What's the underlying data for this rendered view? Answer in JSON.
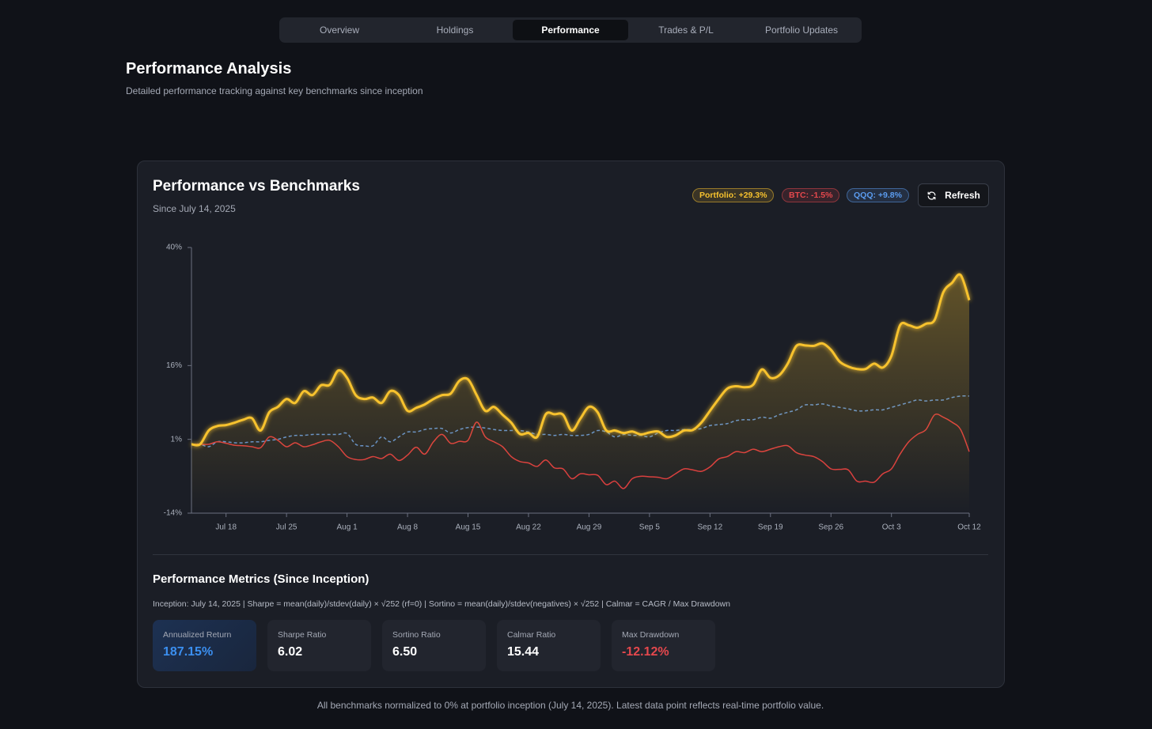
{
  "nav": {
    "tabs": [
      "Overview",
      "Holdings",
      "Performance",
      "Trades & P/L",
      "Portfolio Updates"
    ],
    "active": 2
  },
  "header": {
    "title": "Performance Analysis",
    "subtitle": "Detailed performance tracking against key benchmarks since inception"
  },
  "chart_card": {
    "title": "Performance vs Benchmarks",
    "subtitle": "Since July 14, 2025",
    "badges": [
      "Portfolio: +29.3%",
      "BTC: -1.5%",
      "QQQ: +9.8%"
    ],
    "refresh_button": "Refresh"
  },
  "chart_data": {
    "type": "line",
    "x": [
      "2025-07-14",
      "2025-07-15",
      "2025-07-16",
      "2025-07-17",
      "2025-07-18",
      "2025-07-19",
      "2025-07-20",
      "2025-07-21",
      "2025-07-22",
      "2025-07-23",
      "2025-07-24",
      "2025-07-25",
      "2025-07-26",
      "2025-07-27",
      "2025-07-28",
      "2025-07-29",
      "2025-07-30",
      "2025-07-31",
      "2025-08-01",
      "2025-08-02",
      "2025-08-03",
      "2025-08-04",
      "2025-08-05",
      "2025-08-06",
      "2025-08-07",
      "2025-08-08",
      "2025-08-09",
      "2025-08-10",
      "2025-08-11",
      "2025-08-12",
      "2025-08-13",
      "2025-08-14",
      "2025-08-15",
      "2025-08-16",
      "2025-08-17",
      "2025-08-18",
      "2025-08-19",
      "2025-08-20",
      "2025-08-21",
      "2025-08-22",
      "2025-08-23",
      "2025-08-24",
      "2025-08-25",
      "2025-08-26",
      "2025-08-27",
      "2025-08-28",
      "2025-08-29",
      "2025-08-30",
      "2025-08-31",
      "2025-09-01",
      "2025-09-02",
      "2025-09-03",
      "2025-09-04",
      "2025-09-05",
      "2025-09-06",
      "2025-09-07",
      "2025-09-08",
      "2025-09-09",
      "2025-09-10",
      "2025-09-11",
      "2025-09-12",
      "2025-09-13",
      "2025-09-14",
      "2025-09-15",
      "2025-09-16",
      "2025-09-17",
      "2025-09-18",
      "2025-09-19",
      "2025-09-20",
      "2025-09-21",
      "2025-09-22",
      "2025-09-23",
      "2025-09-24",
      "2025-09-25",
      "2025-09-26",
      "2025-09-27",
      "2025-09-28",
      "2025-09-29",
      "2025-09-30",
      "2025-10-01",
      "2025-10-02",
      "2025-10-03",
      "2025-10-04",
      "2025-10-05",
      "2025-10-06",
      "2025-10-07",
      "2025-10-08",
      "2025-10-09",
      "2025-10-10",
      "2025-10-11",
      "2025-10-12"
    ],
    "series": [
      {
        "color": "#f7c22e",
        "dashed": false,
        "area": true,
        "values": [
          0,
          0,
          2.8,
          3.7,
          3.9,
          4.4,
          5,
          5.3,
          2.8,
          6.5,
          7.6,
          9.2,
          8.4,
          10.8,
          10,
          12,
          12.1,
          15,
          13.5,
          10,
          9.2,
          9.5,
          8.4,
          10.8,
          10,
          6.8,
          7.4,
          8.1,
          9.2,
          10,
          10.3,
          12.9,
          13.2,
          10,
          6.8,
          7.6,
          6,
          4.4,
          2.1,
          2.3,
          1.5,
          6.1,
          6.1,
          6,
          2.8,
          5.2,
          7.6,
          6.5,
          2.8,
          2.8,
          2.3,
          2.6,
          2,
          2.4,
          2.6,
          1.5,
          1.8,
          2.8,
          2.9,
          4.4,
          6.8,
          9.2,
          11.3,
          11.8,
          11.6,
          12.1,
          15.2,
          13.5,
          14,
          16.4,
          20,
          20.1,
          20,
          20.5,
          19.2,
          16.8,
          15.8,
          15.3,
          15.3,
          16.4,
          15.6,
          18,
          24.2,
          24.2,
          23.7,
          24.5,
          25.3,
          30.9,
          32.8,
          34.4,
          29.3
        ]
      },
      {
        "color": "#d9393f",
        "dashed": false,
        "area": false,
        "values": [
          0,
          0,
          0,
          0.5,
          0.2,
          -0.2,
          -0.3,
          -0.5,
          -0.7,
          1.5,
          0.8,
          -0.5,
          0.3,
          -0.5,
          -0.1,
          0.5,
          0.8,
          -0.5,
          -2.5,
          -3.1,
          -3.1,
          -2.5,
          -2.9,
          -2,
          -3.3,
          -2.2,
          -0.6,
          -2,
          0.5,
          2,
          0.2,
          0.6,
          0.8,
          4.5,
          1.5,
          0.5,
          -0.5,
          -2.5,
          -3.5,
          -3.8,
          -4.5,
          -3.2,
          -4.8,
          -5,
          -7,
          -6,
          -6.2,
          -6.3,
          -8.2,
          -7.5,
          -9,
          -7,
          -6.5,
          -6.6,
          -6.7,
          -7,
          -6,
          -5,
          -5.2,
          -5.5,
          -4.6,
          -3,
          -2.5,
          -1.5,
          -1.7,
          -1,
          -1.5,
          -1,
          -0.5,
          -0.3,
          -1.7,
          -2.2,
          -2.5,
          -3.5,
          -5,
          -5.1,
          -5.2,
          -7.5,
          -7.5,
          -7.7,
          -6,
          -5,
          -2,
          0.5,
          2,
          3,
          6,
          5.5,
          4.5,
          3,
          -1.5
        ]
      },
      {
        "color": "#5b8fd6",
        "dashed": true,
        "area": false,
        "values": [
          0,
          0,
          -0.5,
          0.5,
          0.5,
          0.3,
          0.3,
          0.5,
          0.5,
          0.8,
          1,
          1.5,
          1.8,
          1.8,
          2,
          2,
          2,
          2,
          2.2,
          0,
          -0.3,
          -0.3,
          1.5,
          0.5,
          1.5,
          2.5,
          2.5,
          3,
          3.2,
          3.2,
          2.3,
          3,
          3.4,
          3.5,
          3.3,
          3,
          2.8,
          2.8,
          2.8,
          2.5,
          2,
          2,
          1.8,
          2,
          1.8,
          1.8,
          2,
          2.8,
          2.5,
          1.5,
          2,
          1.8,
          1.8,
          1.5,
          2.3,
          2.8,
          2.8,
          3,
          3,
          3.2,
          3.8,
          4,
          4.2,
          4.8,
          5,
          5,
          5.5,
          5.3,
          6,
          6.5,
          7,
          8,
          8,
          8.2,
          7.8,
          7.5,
          7.2,
          6.8,
          6.8,
          7,
          7,
          7.5,
          8,
          8.5,
          9,
          8.8,
          9,
          9,
          9.5,
          9.8,
          9.8
        ]
      }
    ],
    "xlim": [
      "2025-07-14",
      "2025-10-12"
    ],
    "xticks": [
      {
        "value": "2025-07-18",
        "label": "Jul 18"
      },
      {
        "value": "2025-07-25",
        "label": "Jul 25"
      },
      {
        "value": "2025-08-01",
        "label": "Aug 1"
      },
      {
        "value": "2025-08-08",
        "label": "Aug 8"
      },
      {
        "value": "2025-08-15",
        "label": "Aug 15"
      },
      {
        "value": "2025-08-22",
        "label": "Aug 22"
      },
      {
        "value": "2025-08-29",
        "label": "Aug 29"
      },
      {
        "value": "2025-09-05",
        "label": "Sep 5"
      },
      {
        "value": "2025-09-12",
        "label": "Sep 12"
      },
      {
        "value": "2025-09-19",
        "label": "Sep 19"
      },
      {
        "value": "2025-09-26",
        "label": "Sep 26"
      },
      {
        "value": "2025-10-03",
        "label": "Oct 3"
      },
      {
        "value": "2025-10-12",
        "label": "Oct 12"
      }
    ],
    "ylim": [
      -14,
      40
    ],
    "yticks": [
      {
        "value": -14,
        "label": "-14%"
      },
      {
        "value": 1,
        "label": "1%"
      },
      {
        "value": 16,
        "label": "16%"
      },
      {
        "value": 40,
        "label": "40%"
      }
    ],
    "grid": false
  },
  "metrics": {
    "title": "Performance Metrics (Since Inception)",
    "formula": "Inception: July 14, 2025 | Sharpe = mean(daily)/stdev(daily) × √252 (rf=0) | Sortino = mean(daily)/stdev(negatives) × √252 | Calmar = CAGR / Max Drawdown",
    "items": [
      {
        "label": "Annualized Return",
        "value": "187.15%",
        "tone": "highlight"
      },
      {
        "label": "Sharpe Ratio",
        "value": "6.02",
        "tone": "plain"
      },
      {
        "label": "Sortino Ratio",
        "value": "6.50",
        "tone": "plain"
      },
      {
        "label": "Calmar Ratio",
        "value": "15.44",
        "tone": "plain"
      },
      {
        "label": "Max Drawdown",
        "value": "-12.12%",
        "tone": "negative"
      }
    ]
  },
  "footer": "All benchmarks normalized to 0% at portfolio inception (July 14, 2025). Latest data point reflects real-time portfolio value."
}
